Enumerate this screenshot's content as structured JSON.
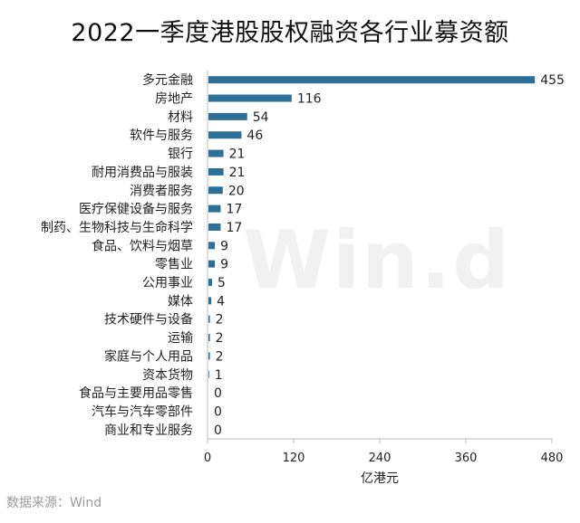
{
  "chart_data": {
    "type": "bar",
    "orientation": "horizontal",
    "title": "2022一季度港股股权融资各行业募资额",
    "xlabel": "亿港元",
    "ylabel": "",
    "xlim": [
      0,
      480
    ],
    "xticks": [
      0,
      120,
      240,
      360,
      480
    ],
    "grid": false,
    "bar_color": "#2e6f97",
    "categories": [
      "多元金融",
      "房地产",
      "材料",
      "软件与服务",
      "银行",
      "耐用消费品与服装",
      "消费者服务",
      "医疗保健设备与服务",
      "制药、生物科技与生命科学",
      "食品、饮料与烟草",
      "零售业",
      "公用事业",
      "媒体",
      "技术硬件与设备",
      "运输",
      "家庭与个人用品",
      "资本货物",
      "食品与主要用品零售",
      "汽车与汽车零部件",
      "商业和专业服务"
    ],
    "values": [
      455,
      116,
      54,
      46,
      21,
      21,
      20,
      17,
      17,
      9,
      9,
      5,
      4,
      2,
      2,
      2,
      1,
      0,
      0,
      0
    ]
  },
  "source": "数据来源：Wind",
  "watermark": "Win.d"
}
